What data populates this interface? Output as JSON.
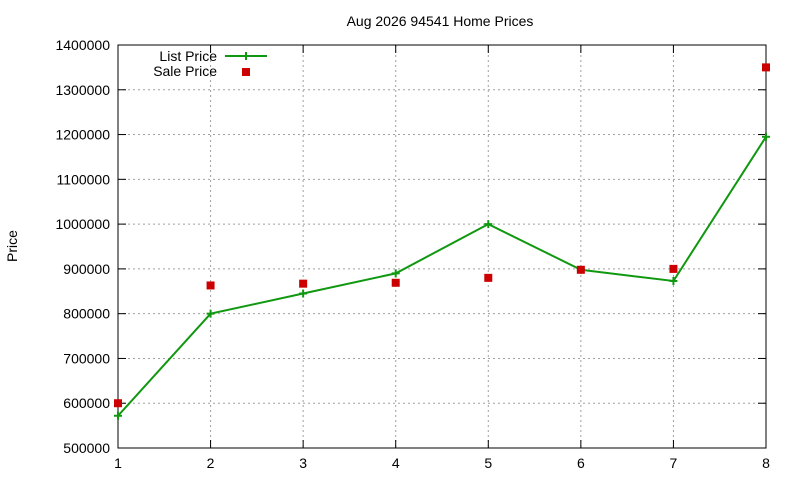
{
  "chart_data": {
    "type": "line",
    "title": "Aug 2026 94541 Home Prices",
    "xlabel": "",
    "ylabel": "Price",
    "x": [
      1,
      2,
      3,
      4,
      5,
      6,
      7,
      8
    ],
    "xlim": [
      1,
      8
    ],
    "ylim": [
      500000,
      1400000
    ],
    "xticks": [
      "1",
      "2",
      "3",
      "4",
      "5",
      "6",
      "7",
      "8"
    ],
    "yticks": [
      "500000",
      "600000",
      "700000",
      "800000",
      "900000",
      "1000000",
      "1100000",
      "1200000",
      "1300000",
      "1400000"
    ],
    "grid": true,
    "legend_position": "top-left",
    "series": [
      {
        "name": "List Price",
        "style": "line-with-plus-markers",
        "color": "#109810",
        "values": [
          572000,
          800000,
          845000,
          890000,
          1000000,
          898000,
          873000,
          1195000
        ]
      },
      {
        "name": "Sale Price",
        "style": "square-points",
        "color": "#cc0000",
        "values": [
          600000,
          863000,
          867000,
          869000,
          880000,
          898000,
          900000,
          1350000
        ]
      }
    ]
  }
}
